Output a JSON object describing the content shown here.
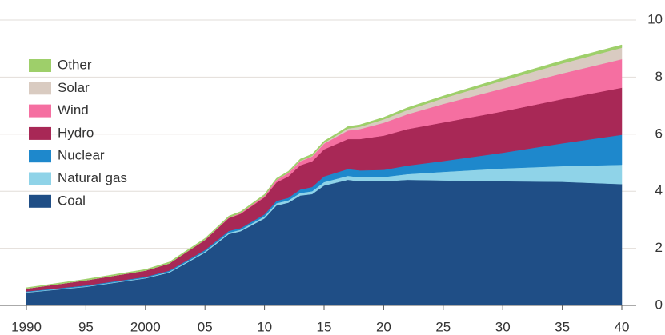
{
  "chart_data": {
    "type": "stacked_area",
    "x": [
      1990,
      1995,
      2000,
      2002,
      2005,
      2007,
      2008,
      2010,
      2011,
      2012,
      2013,
      2014,
      2015,
      2016,
      2017,
      2018,
      2020,
      2022,
      2025,
      2030,
      2035,
      2040
    ],
    "series": [
      {
        "name": "Coal",
        "color": "#1f4e86",
        "values": [
          0.45,
          0.65,
          0.95,
          1.15,
          1.85,
          2.5,
          2.6,
          3.05,
          3.5,
          3.6,
          3.85,
          3.9,
          4.2,
          4.3,
          4.4,
          4.35,
          4.35,
          4.4,
          4.38,
          4.35,
          4.33,
          4.25
        ]
      },
      {
        "name": "Natural gas",
        "color": "#8fd3e8",
        "values": [
          0.02,
          0.02,
          0.02,
          0.03,
          0.04,
          0.05,
          0.05,
          0.07,
          0.08,
          0.08,
          0.09,
          0.1,
          0.12,
          0.13,
          0.14,
          0.14,
          0.15,
          0.2,
          0.3,
          0.45,
          0.55,
          0.68
        ]
      },
      {
        "name": "Nuclear",
        "color": "#1e88cc",
        "values": [
          0.02,
          0.03,
          0.03,
          0.04,
          0.05,
          0.06,
          0.06,
          0.07,
          0.08,
          0.09,
          0.12,
          0.15,
          0.2,
          0.22,
          0.24,
          0.24,
          0.25,
          0.3,
          0.38,
          0.55,
          0.8,
          1.05
        ]
      },
      {
        "name": "Hydro",
        "color": "#a82856",
        "values": [
          0.1,
          0.18,
          0.22,
          0.25,
          0.35,
          0.45,
          0.5,
          0.6,
          0.65,
          0.75,
          0.85,
          0.9,
          0.95,
          1.0,
          1.05,
          1.1,
          1.2,
          1.28,
          1.35,
          1.45,
          1.55,
          1.65
        ]
      },
      {
        "name": "Wind",
        "color": "#f56fa1",
        "values": [
          0,
          0,
          0,
          0,
          0.01,
          0.02,
          0.03,
          0.05,
          0.08,
          0.12,
          0.14,
          0.17,
          0.2,
          0.25,
          0.3,
          0.35,
          0.45,
          0.52,
          0.65,
          0.8,
          0.9,
          1.0
        ]
      },
      {
        "name": "Solar",
        "color": "#d9cbc1",
        "values": [
          0,
          0,
          0,
          0,
          0,
          0,
          0,
          0,
          0.01,
          0.01,
          0.02,
          0.02,
          0.03,
          0.05,
          0.07,
          0.08,
          0.12,
          0.15,
          0.2,
          0.28,
          0.35,
          0.4
        ]
      },
      {
        "name": "Other",
        "color": "#9ecf6a",
        "values": [
          0.03,
          0.04,
          0.04,
          0.05,
          0.05,
          0.05,
          0.05,
          0.05,
          0.05,
          0.05,
          0.06,
          0.06,
          0.06,
          0.06,
          0.07,
          0.07,
          0.07,
          0.08,
          0.08,
          0.09,
          0.1,
          0.1
        ]
      }
    ],
    "xlim": [
      1990,
      2040
    ],
    "xticks": [
      1990,
      {
        "value": 1995,
        "label": "95"
      },
      2000,
      {
        "value": 2005,
        "label": "05"
      },
      {
        "value": 2010,
        "label": "10"
      },
      {
        "value": 2015,
        "label": "15"
      },
      {
        "value": 2020,
        "label": "20"
      },
      {
        "value": 2025,
        "label": "25"
      },
      {
        "value": 2030,
        "label": "30"
      },
      {
        "value": 2035,
        "label": "35"
      },
      {
        "value": 2040,
        "label": "40"
      }
    ],
    "ylim": [
      0,
      10
    ],
    "yticks": [
      0,
      2,
      4,
      6,
      8,
      10
    ],
    "grid": true,
    "legend": "upper left"
  }
}
